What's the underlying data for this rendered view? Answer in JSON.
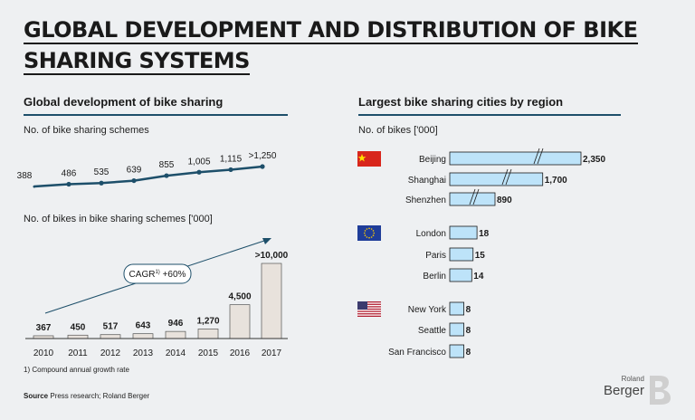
{
  "title_line1": "GLOBAL DEVELOPMENT AND DISTRIBUTION OF BIKE",
  "title_line2": "SHARING SYSTEMS",
  "left_heading": "Global development of bike sharing",
  "right_heading": "Largest bike sharing cities by region",
  "footnote": "1) Compound annual growth rate",
  "source_label": "Source",
  "source_text": "Press research; Roland Berger",
  "logo_small": "Roland",
  "logo_big": "Berger",
  "colors": {
    "accent": "#1d4f6a",
    "bar": "#e8e2dc",
    "cities_bar": "#bde3f9"
  },
  "chart_data": [
    {
      "type": "line",
      "title": "No. of bike sharing schemes",
      "x": [
        "2010",
        "2011",
        "2012",
        "2013",
        "2014",
        "2015",
        "2016",
        "2017"
      ],
      "values": [
        388,
        486,
        535,
        639,
        855,
        1005,
        1115,
        1250
      ],
      "value_labels": [
        "388",
        "486",
        "535",
        "639",
        "855",
        "1,005",
        "1,115",
        ">1,250"
      ]
    },
    {
      "type": "bar",
      "title": "No. of bikes in bike sharing schemes ['000]",
      "categories": [
        "2010",
        "2011",
        "2012",
        "2013",
        "2014",
        "2015",
        "2016",
        "2017"
      ],
      "values": [
        367,
        450,
        517,
        643,
        946,
        1270,
        4500,
        10000
      ],
      "value_labels": [
        "367",
        "450",
        "517",
        "643",
        "946",
        "1,270",
        "4,500",
        ">10,000"
      ],
      "annotation": "CAGR",
      "annotation_sup": "1)",
      "annotation_value": "+60%"
    },
    {
      "type": "bar",
      "orientation": "horizontal",
      "title": "No. of bikes ['000]",
      "groups": [
        {
          "flag": "china-flag",
          "cities": [
            {
              "name": "Beijing",
              "value": 2350,
              "label": "2,350",
              "broken": true
            },
            {
              "name": "Shanghai",
              "value": 1700,
              "label": "1,700",
              "broken": true
            },
            {
              "name": "Shenzhen",
              "value": 890,
              "label": "890",
              "broken": true
            }
          ]
        },
        {
          "flag": "eu-flag",
          "cities": [
            {
              "name": "London",
              "value": 18,
              "label": "18"
            },
            {
              "name": "Paris",
              "value": 15,
              "label": "15"
            },
            {
              "name": "Berlin",
              "value": 14,
              "label": "14"
            }
          ]
        },
        {
          "flag": "usa-flag",
          "cities": [
            {
              "name": "New York",
              "value": 8,
              "label": "8"
            },
            {
              "name": "Seattle",
              "value": 8,
              "label": "8"
            },
            {
              "name": "San Francisco",
              "value": 8,
              "label": "8"
            }
          ]
        }
      ]
    }
  ]
}
